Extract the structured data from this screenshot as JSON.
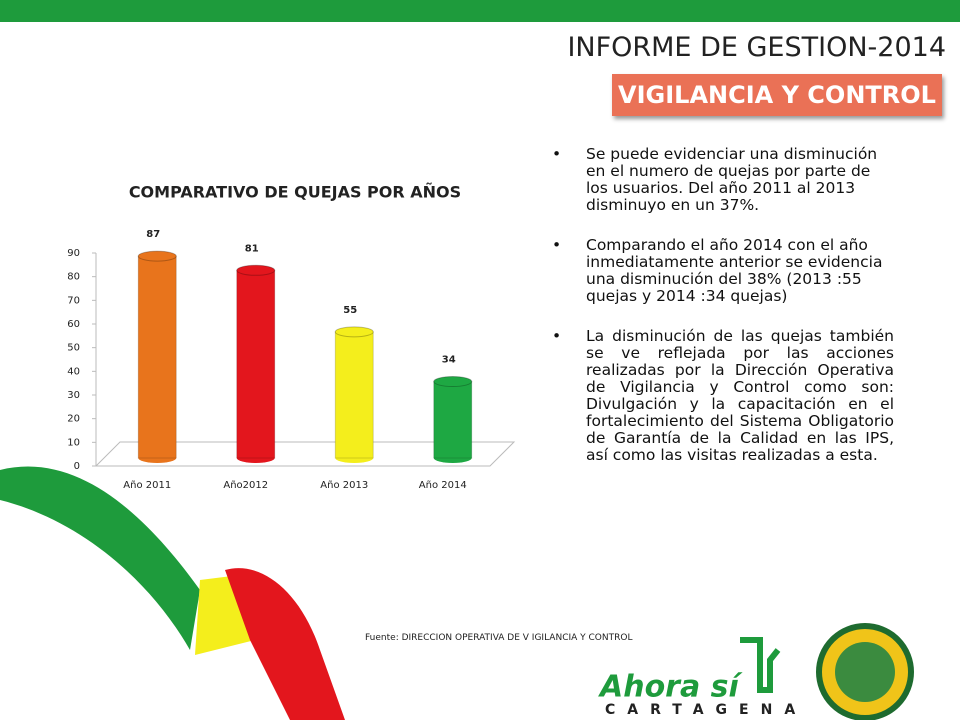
{
  "header": {
    "title": "INFORME DE GESTION-2014",
    "subtitle": "VIGILANCIA Y CONTROL"
  },
  "chart_data": {
    "type": "bar",
    "title": "COMPARATIVO DE QUEJAS POR AÑOS",
    "categories": [
      "Año 2011",
      "Año2012",
      "Año 2013",
      "Año 2014"
    ],
    "values": [
      87,
      81,
      55,
      34
    ],
    "colors": [
      "#e8741c",
      "#e3161d",
      "#f4ee1c",
      "#1ea843"
    ],
    "ylim": [
      0,
      90
    ],
    "yticks": [
      0,
      10,
      20,
      30,
      40,
      50,
      60,
      70,
      80,
      90
    ],
    "grid": false
  },
  "bullets": [
    "Se puede evidenciar una disminución en el numero de quejas por parte de los usuarios. Del año 2011 al 2013 disminuyo en un 37%.",
    "Comparando el año 2014 con el año inmediatamente anterior se evidencia una disminución del 38% (2013 :55 quejas y 2014 :34 quejas)",
    "La disminución de las quejas también se ve reflejada por las acciones realizadas por la Dirección Operativa de Vigilancia y Control como son: Divulgación  y la capacitación en el fortalecimiento del Sistema Obligatorio de Garantía de la Calidad en las IPS,  así como las visitas realizadas a esta."
  ],
  "source": "Fuente: DIRECCION OPERATIVA DE V IGILANCIA Y CONTROL",
  "logo": {
    "slogan": "Ahora sí",
    "city": "CARTAGENA"
  }
}
